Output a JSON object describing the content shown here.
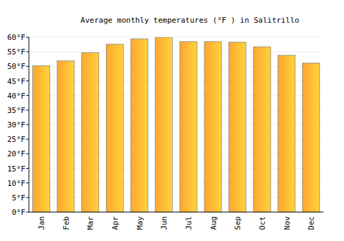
{
  "chart_data": {
    "type": "bar",
    "title": "Average monthly temperatures (°F ) in Salitrillo",
    "categories": [
      "Jan",
      "Feb",
      "Mar",
      "Apr",
      "May",
      "Jun",
      "Jul",
      "Aug",
      "Sep",
      "Oct",
      "Nov",
      "Dec"
    ],
    "values": [
      50.2,
      51.9,
      54.7,
      57.6,
      59.4,
      60.0,
      58.5,
      58.5,
      58.3,
      56.7,
      53.8,
      51.1
    ],
    "color": "#ffa52e",
    "ylim": [
      0,
      60
    ],
    "yticks": [
      {
        "value": 0,
        "label": "0°F"
      },
      {
        "value": 5,
        "label": "5°F"
      },
      {
        "value": 10,
        "label": "10°F"
      },
      {
        "value": 15,
        "label": "15°F"
      },
      {
        "value": 20,
        "label": "20°F"
      },
      {
        "value": 25,
        "label": "25°F"
      },
      {
        "value": 30,
        "label": "30°F"
      },
      {
        "value": 35,
        "label": "35°F"
      },
      {
        "value": 40,
        "label": "40°F"
      },
      {
        "value": 45,
        "label": "45°F"
      },
      {
        "value": 50,
        "label": "50°F"
      },
      {
        "value": 55,
        "label": "55°F"
      },
      {
        "value": 60,
        "label": "60°F"
      }
    ],
    "grid": true
  }
}
